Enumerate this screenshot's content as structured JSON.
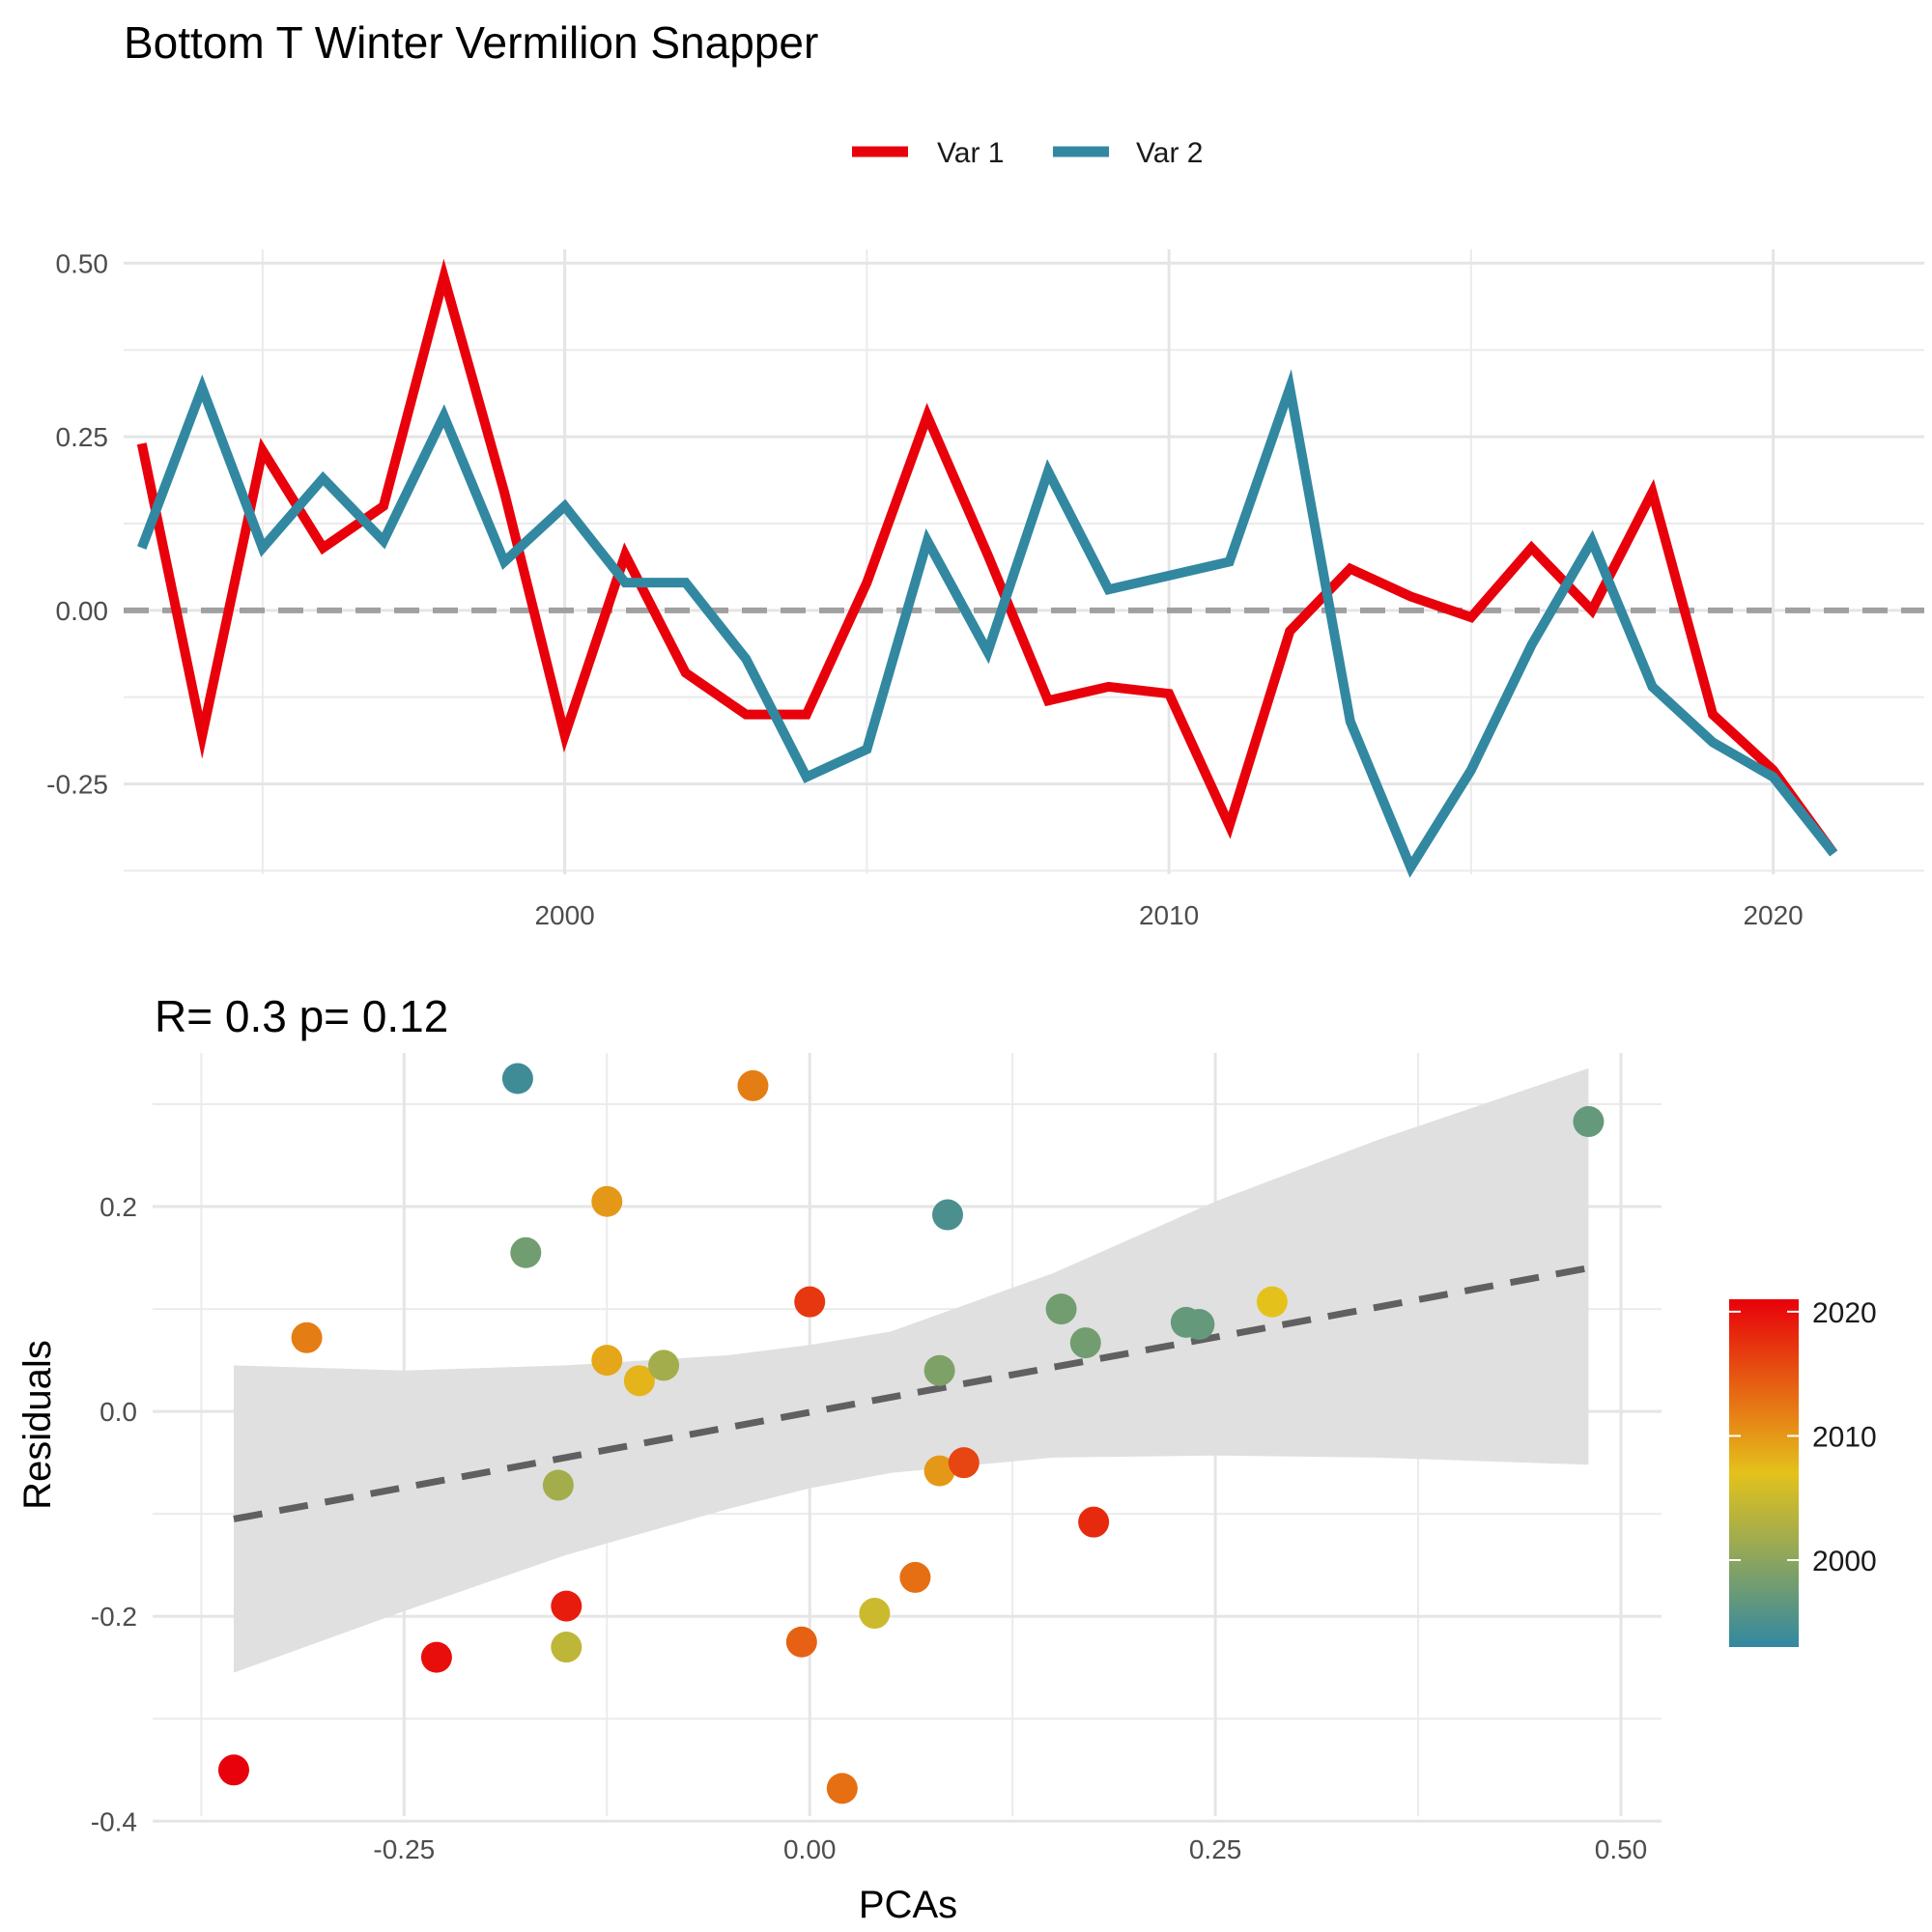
{
  "title": "Bottom T Winter Vermilion Snapper",
  "chart_data": [
    {
      "type": "line",
      "title": "",
      "xlabel": "",
      "ylabel": "",
      "xlim": [
        1992.7,
        2022.5
      ],
      "ylim": [
        -0.38,
        0.52
      ],
      "x_ticks": [
        "2000",
        "2010",
        "2020"
      ],
      "x_tick_values": [
        2000,
        2010,
        2020
      ],
      "y_ticks": [
        "0.50",
        "0.25",
        "0.00",
        "-0.25"
      ],
      "y_tick_values": [
        0.5,
        0.25,
        0,
        -0.25
      ],
      "reference_line": {
        "y": 0,
        "style": "dashed",
        "color": "#A0A0A0"
      },
      "grid": true,
      "legend_position": "top",
      "x": [
        1993,
        1994,
        1995,
        1996,
        1997,
        1998,
        1999,
        2000,
        2001,
        2002,
        2003,
        2004,
        2005,
        2006,
        2007,
        2008,
        2009,
        2010,
        2011,
        2012,
        2013,
        2014,
        2015,
        2016,
        2017,
        2018,
        2019,
        2020,
        2021
      ],
      "series": [
        {
          "name": "Var 1",
          "color": "#E8000B",
          "values": [
            0.24,
            -0.18,
            0.23,
            0.09,
            0.15,
            0.48,
            0.17,
            -0.18,
            0.08,
            -0.09,
            -0.15,
            -0.15,
            0.04,
            0.28,
            0.08,
            -0.13,
            -0.11,
            -0.12,
            -0.31,
            -0.03,
            0.06,
            0.02,
            -0.01,
            0.09,
            0.0,
            0.17,
            -0.15,
            -0.23,
            -0.35
          ]
        },
        {
          "name": "Var 2",
          "color": "#3288A1",
          "values": [
            0.09,
            0.32,
            0.09,
            0.19,
            0.1,
            0.28,
            0.07,
            0.15,
            0.04,
            0.04,
            -0.07,
            -0.24,
            -0.2,
            0.1,
            -0.06,
            0.2,
            0.03,
            0.05,
            0.07,
            0.32,
            -0.16,
            -0.37,
            -0.23,
            -0.05,
            0.1,
            -0.11,
            -0.19,
            -0.24,
            -0.35
          ]
        }
      ]
    },
    {
      "type": "scatter",
      "title": "R= 0.3  p= 0.12",
      "xlabel": "PCAs",
      "ylabel": "Residuals",
      "xlim": [
        -0.405,
        0.525
      ],
      "ylim": [
        -0.395,
        0.35
      ],
      "x_ticks": [
        "-0.25",
        "0.00",
        "0.25",
        "0.50"
      ],
      "x_tick_values": [
        -0.25,
        0,
        0.25,
        0.5
      ],
      "y_ticks": [
        "0.2",
        "0.0",
        "-0.2",
        "-0.4"
      ],
      "y_tick_values": [
        0.2,
        0,
        -0.2,
        -0.4
      ],
      "grid": true,
      "fit": {
        "style": "dashed",
        "color": "#606060",
        "x": [
          -0.355,
          0.48
        ],
        "y": [
          -0.105,
          0.14
        ],
        "band": {
          "color": "#E0E0E0",
          "x": [
            -0.355,
            -0.25,
            -0.15,
            -0.05,
            0.0,
            0.05,
            0.15,
            0.25,
            0.35,
            0.48
          ],
          "upper": [
            0.045,
            0.04,
            0.045,
            0.055,
            0.065,
            0.078,
            0.135,
            0.205,
            0.265,
            0.335
          ],
          "lower": [
            -0.255,
            -0.195,
            -0.14,
            -0.095,
            -0.075,
            -0.06,
            -0.045,
            -0.043,
            -0.045,
            -0.052
          ]
        }
      },
      "colorbar": {
        "ticks": [
          "2020",
          "2010",
          "2000"
        ],
        "tick_values": [
          2020,
          2010,
          2000
        ],
        "range": [
          1993,
          2021
        ],
        "stops": [
          "#3288A1",
          "#E4C21B",
          "#E8000B"
        ]
      },
      "points": [
        {
          "x": -0.355,
          "y": -0.35,
          "year": 2021
        },
        {
          "x": -0.31,
          "y": 0.072,
          "year": 2012
        },
        {
          "x": -0.23,
          "y": -0.24,
          "year": 2020
        },
        {
          "x": -0.18,
          "y": 0.325,
          "year": 1994
        },
        {
          "x": -0.175,
          "y": 0.155,
          "year": 1998
        },
        {
          "x": -0.155,
          "y": -0.072,
          "year": 2002
        },
        {
          "x": -0.15,
          "y": -0.19,
          "year": 2019
        },
        {
          "x": -0.15,
          "y": -0.23,
          "year": 2004
        },
        {
          "x": -0.125,
          "y": 0.205,
          "year": 2010
        },
        {
          "x": -0.125,
          "y": 0.05,
          "year": 2009
        },
        {
          "x": -0.105,
          "y": 0.03,
          "year": 2008
        },
        {
          "x": -0.09,
          "y": 0.045,
          "year": 2002
        },
        {
          "x": -0.035,
          "y": 0.318,
          "year": 2012
        },
        {
          "x": -0.005,
          "y": -0.225,
          "year": 2014
        },
        {
          "x": 0.0,
          "y": 0.107,
          "year": 2017
        },
        {
          "x": 0.02,
          "y": -0.368,
          "year": 2013
        },
        {
          "x": 0.04,
          "y": -0.197,
          "year": 2005
        },
        {
          "x": 0.065,
          "y": -0.162,
          "year": 2013
        },
        {
          "x": 0.08,
          "y": -0.058,
          "year": 2010
        },
        {
          "x": 0.08,
          "y": 0.04,
          "year": 1999
        },
        {
          "x": 0.085,
          "y": 0.192,
          "year": 1995
        },
        {
          "x": 0.095,
          "y": -0.05,
          "year": 2016
        },
        {
          "x": 0.155,
          "y": 0.1,
          "year": 1998
        },
        {
          "x": 0.17,
          "y": 0.067,
          "year": 1998
        },
        {
          "x": 0.175,
          "y": -0.108,
          "year": 2018
        },
        {
          "x": 0.232,
          "y": 0.087,
          "year": 1997
        },
        {
          "x": 0.24,
          "y": 0.085,
          "year": 1997
        },
        {
          "x": 0.285,
          "y": 0.107,
          "year": 2007
        },
        {
          "x": 0.48,
          "y": 0.283,
          "year": 1997
        }
      ]
    }
  ]
}
